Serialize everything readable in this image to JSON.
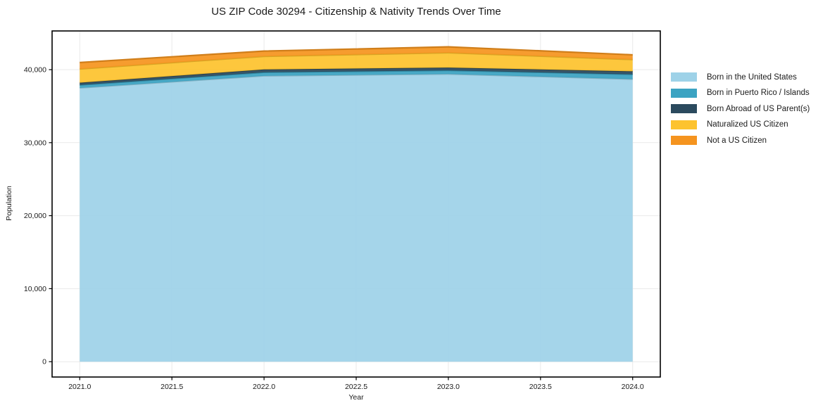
{
  "chart_data": {
    "type": "area",
    "stacked": true,
    "title": "US ZIP Code 30294 - Citizenship & Nativity Trends Over Time",
    "xlabel": "Year",
    "ylabel": "Population",
    "x": [
      2021,
      2022,
      2023,
      2024
    ],
    "series": [
      {
        "name": "Born in the United States",
        "color": "#9ED2E8",
        "values": [
          37500,
          39150,
          39400,
          38700
        ]
      },
      {
        "name": "Born in Puerto Rico / Islands",
        "color": "#3BA3C2",
        "values": [
          390,
          480,
          490,
          650
        ]
      },
      {
        "name": "Born Abroad of US Parent(s)",
        "color": "#2B4A5E",
        "values": [
          320,
          390,
          390,
          420
        ]
      },
      {
        "name": "Naturalized US Citizen",
        "color": "#FDC32E",
        "values": [
          1880,
          1800,
          2030,
          1610
        ]
      },
      {
        "name": "Not a US Citizen",
        "color": "#F5941F",
        "values": [
          890,
          720,
          810,
          650
        ]
      }
    ],
    "xticks": [
      2021.0,
      2021.5,
      2022.0,
      2022.5,
      2023.0,
      2023.5,
      2024.0
    ],
    "xtick_labels": [
      "2021.0",
      "2021.5",
      "2022.0",
      "2022.5",
      "2023.0",
      "2023.5",
      "2024.0"
    ],
    "yticks": [
      0,
      10000,
      20000,
      30000,
      40000
    ],
    "ytick_labels": [
      "0",
      "10,000",
      "20,000",
      "30,000",
      "40,000"
    ],
    "xlim": [
      2020.85,
      2024.15
    ],
    "ylim": [
      -2100,
      45300
    ],
    "grid": true,
    "legend_position": "right",
    "frame_color": "#000000",
    "grid_color": "#e9e9e9",
    "fill_opacity": 0.93
  }
}
